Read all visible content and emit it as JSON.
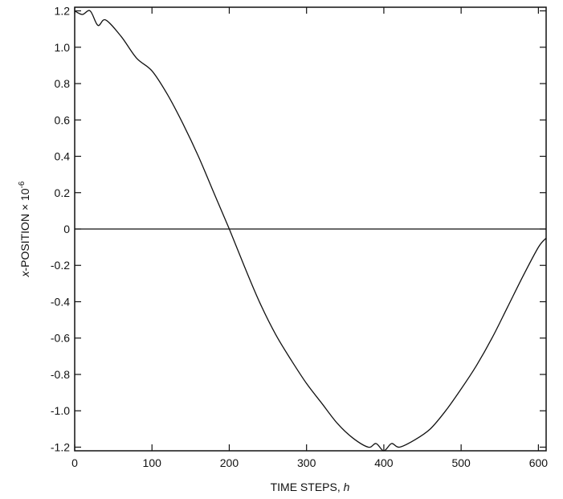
{
  "chart_data": {
    "type": "line",
    "xlabel": "TIME STEPS, h",
    "xlabel_parts": {
      "main": "TIME STEPS, ",
      "var": "h"
    },
    "ylabel": "x-POSITION × 10-6",
    "ylabel_parts": {
      "var": "x",
      "main": "-POSITION × 10",
      "exp": "-6"
    },
    "xlim": [
      0,
      610
    ],
    "ylim": [
      -1.22,
      1.22
    ],
    "xticks": [
      0,
      100,
      200,
      300,
      400,
      500,
      600
    ],
    "xtick_labels": [
      "0",
      "100",
      "200",
      "300",
      "400",
      "500",
      "600"
    ],
    "yticks": [
      1.2,
      1.0,
      0.8,
      0.6,
      0.4,
      0.2,
      0,
      -0.2,
      -0.4,
      -0.6,
      -0.8,
      -1.0,
      -1.2
    ],
    "ytick_labels": [
      "1.2",
      "1.0",
      "0.8",
      "0.6",
      "0.4",
      "0.2",
      "0",
      "-0.2",
      "-0.4",
      "-0.6",
      "-0.8",
      "-1.0",
      "-1.2"
    ],
    "reference_line": {
      "y": 0
    },
    "grid": false,
    "series": [
      {
        "x": [
          0,
          10,
          20,
          30,
          40,
          60,
          80,
          100,
          120,
          140,
          160,
          180,
          200,
          220,
          240,
          260,
          280,
          300,
          320,
          340,
          360,
          380,
          390,
          400,
          410,
          420,
          440,
          460,
          480,
          500,
          520,
          540,
          560,
          580,
          600,
          610
        ],
        "y": [
          1.2,
          1.18,
          1.2,
          1.12,
          1.15,
          1.06,
          0.94,
          0.87,
          0.74,
          0.58,
          0.4,
          0.2,
          0.0,
          -0.21,
          -0.41,
          -0.58,
          -0.72,
          -0.85,
          -0.96,
          -1.07,
          -1.15,
          -1.2,
          -1.18,
          -1.22,
          -1.18,
          -1.2,
          -1.16,
          -1.1,
          -1.0,
          -0.88,
          -0.75,
          -0.6,
          -0.43,
          -0.26,
          -0.1,
          -0.05
        ]
      }
    ]
  }
}
